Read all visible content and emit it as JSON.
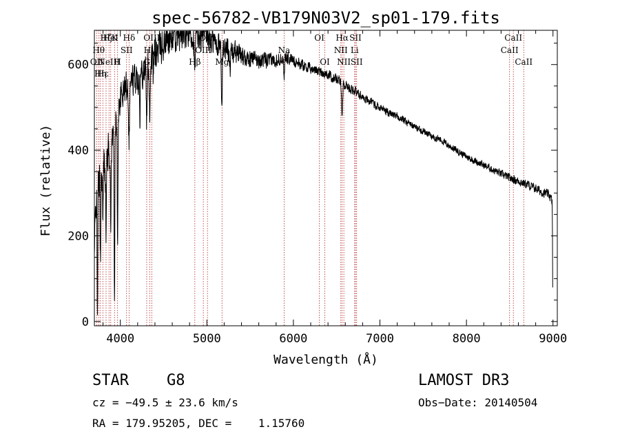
{
  "chart_data": {
    "type": "line",
    "title": "spec-56782-VB179N03V2_sp01-179.fits",
    "xlabel": "Wavelength (Å)",
    "ylabel": "Flux (relative)",
    "xlim": [
      3700,
      9050
    ],
    "ylim": [
      -10,
      680
    ],
    "xticks": [
      4000,
      5000,
      6000,
      7000,
      8000,
      9000
    ],
    "yticks": [
      0,
      200,
      400,
      600
    ],
    "xtick_labels": [
      "4000",
      "5000",
      "6000",
      "7000",
      "8000",
      "9000"
    ],
    "ytick_labels": [
      "0",
      "200",
      "400",
      "600"
    ],
    "series": [
      {
        "name": "spectrum",
        "continuum": [
          [
            3700,
            150
          ],
          [
            3720,
            300
          ],
          [
            3760,
            330
          ],
          [
            3800,
            360
          ],
          [
            3850,
            390
          ],
          [
            3900,
            420
          ],
          [
            3950,
            470
          ],
          [
            4000,
            520
          ],
          [
            4050,
            545
          ],
          [
            4100,
            560
          ],
          [
            4150,
            565
          ],
          [
            4200,
            570
          ],
          [
            4250,
            585
          ],
          [
            4300,
            600
          ],
          [
            4350,
            610
          ],
          [
            4400,
            625
          ],
          [
            4500,
            650
          ],
          [
            4600,
            665
          ],
          [
            4700,
            670
          ],
          [
            4800,
            672
          ],
          [
            4900,
            670
          ],
          [
            5000,
            662
          ],
          [
            5100,
            650
          ],
          [
            5200,
            640
          ],
          [
            5300,
            630
          ],
          [
            5400,
            622
          ],
          [
            5500,
            615
          ],
          [
            5600,
            610
          ],
          [
            5700,
            608
          ],
          [
            5800,
            612
          ],
          [
            5900,
            618
          ],
          [
            6000,
            610
          ],
          [
            6100,
            600
          ],
          [
            6200,
            590
          ],
          [
            6300,
            585
          ],
          [
            6400,
            575
          ],
          [
            6500,
            565
          ],
          [
            6600,
            552
          ],
          [
            6700,
            540
          ],
          [
            6800,
            525
          ],
          [
            6900,
            512
          ],
          [
            7000,
            500
          ],
          [
            7100,
            488
          ],
          [
            7200,
            478
          ],
          [
            7300,
            468
          ],
          [
            7400,
            455
          ],
          [
            7500,
            445
          ],
          [
            7600,
            432
          ],
          [
            7700,
            425
          ],
          [
            7800,
            410
          ],
          [
            7900,
            398
          ],
          [
            8000,
            385
          ],
          [
            8100,
            375
          ],
          [
            8200,
            365
          ],
          [
            8300,
            355
          ],
          [
            8400,
            345
          ],
          [
            8500,
            335
          ],
          [
            8600,
            328
          ],
          [
            8700,
            320
          ],
          [
            8800,
            310
          ],
          [
            8900,
            300
          ],
          [
            8960,
            295
          ],
          [
            8990,
            280
          ],
          [
            9000,
            90
          ]
        ],
        "absorption_dips": [
          {
            "center": 3735,
            "depth": 280,
            "width": 6
          },
          {
            "center": 3770,
            "depth": 180,
            "width": 6
          },
          {
            "center": 3798,
            "depth": 160,
            "width": 5
          },
          {
            "center": 3835,
            "depth": 180,
            "width": 6
          },
          {
            "center": 3889,
            "depth": 200,
            "width": 6
          },
          {
            "center": 3933,
            "depth": 400,
            "width": 6
          },
          {
            "center": 3968,
            "depth": 330,
            "width": 6
          },
          {
            "center": 4101,
            "depth": 130,
            "width": 8
          },
          {
            "center": 4227,
            "depth": 90,
            "width": 5
          },
          {
            "center": 4305,
            "depth": 140,
            "width": 8
          },
          {
            "center": 4340,
            "depth": 120,
            "width": 8
          },
          {
            "center": 4383,
            "depth": 60,
            "width": 5
          },
          {
            "center": 4861,
            "depth": 90,
            "width": 10
          },
          {
            "center": 5172,
            "depth": 150,
            "width": 8
          },
          {
            "center": 5270,
            "depth": 40,
            "width": 6
          },
          {
            "center": 5893,
            "depth": 40,
            "width": 8
          },
          {
            "center": 6563,
            "depth": 80,
            "width": 8
          }
        ],
        "noise": [
          [
            3700,
            70
          ],
          [
            4000,
            45
          ],
          [
            4500,
            55
          ],
          [
            5000,
            45
          ],
          [
            5500,
            25
          ],
          [
            6000,
            18
          ],
          [
            7000,
            12
          ],
          [
            8000,
            10
          ],
          [
            9000,
            14
          ]
        ]
      }
    ],
    "lines": [
      {
        "wl": 3727,
        "label": "OII",
        "row": 2
      },
      {
        "wl": 3750,
        "label": "Hθ",
        "row": 1
      },
      {
        "wl": 3770,
        "label": "Hη",
        "row": 3
      },
      {
        "wl": 3798,
        "label": "Hε",
        "row": 3
      },
      {
        "wl": 3835,
        "label": "Hζ",
        "row": 0
      },
      {
        "wl": 3869,
        "label": "NeIII",
        "row": 2
      },
      {
        "wl": 3889,
        "label": "HeI",
        "row": 0
      },
      {
        "wl": 3933,
        "label": "K",
        "row": 0
      },
      {
        "wl": 3968,
        "label": "H",
        "row": 2
      },
      {
        "wl": 4072,
        "label": "SII",
        "row": 1
      },
      {
        "wl": 4101,
        "label": "Hδ",
        "row": 0
      },
      {
        "wl": 4305,
        "label": "G",
        "row": 2
      },
      {
        "wl": 4340,
        "label": "Hγ",
        "row": 1
      },
      {
        "wl": 4363,
        "label": "OIII",
        "row": 0
      },
      {
        "wl": 4861,
        "label": "Hβ",
        "row": 2
      },
      {
        "wl": 4959,
        "label": "OIII",
        "row": 1
      },
      {
        "wl": 5007,
        "label": "OIII",
        "row": 0
      },
      {
        "wl": 5175,
        "label": "Mg",
        "row": 2
      },
      {
        "wl": 5893,
        "label": "Na",
        "row": 1
      },
      {
        "wl": 6300,
        "label": "OI",
        "row": 0
      },
      {
        "wl": 6363,
        "label": "OI",
        "row": 2
      },
      {
        "wl": 6548,
        "label": "NII",
        "row": 1
      },
      {
        "wl": 6563,
        "label": "Hα",
        "row": 0
      },
      {
        "wl": 6583,
        "label": "NII",
        "row": 2
      },
      {
        "wl": 6708,
        "label": "Li",
        "row": 1
      },
      {
        "wl": 6717,
        "label": "SII",
        "row": 0
      },
      {
        "wl": 6731,
        "label": "SII",
        "row": 2
      },
      {
        "wl": 8498,
        "label": "CaII",
        "row": 1
      },
      {
        "wl": 8542,
        "label": "CaII",
        "row": 0
      },
      {
        "wl": 8662,
        "label": "CaII",
        "row": 2
      }
    ]
  },
  "info": {
    "object_class": "STAR",
    "subclass": "G8",
    "survey": "LAMOST DR3",
    "cz": "cz = −49.5 ± 23.6 km/s",
    "obs_date": "Obs−Date: 20140504",
    "radec": "RA = 179.95205, DEC =    1.15760"
  },
  "colors": {
    "axis": "#000000",
    "spectrum": "#000000",
    "line_marker": "#b22222"
  }
}
